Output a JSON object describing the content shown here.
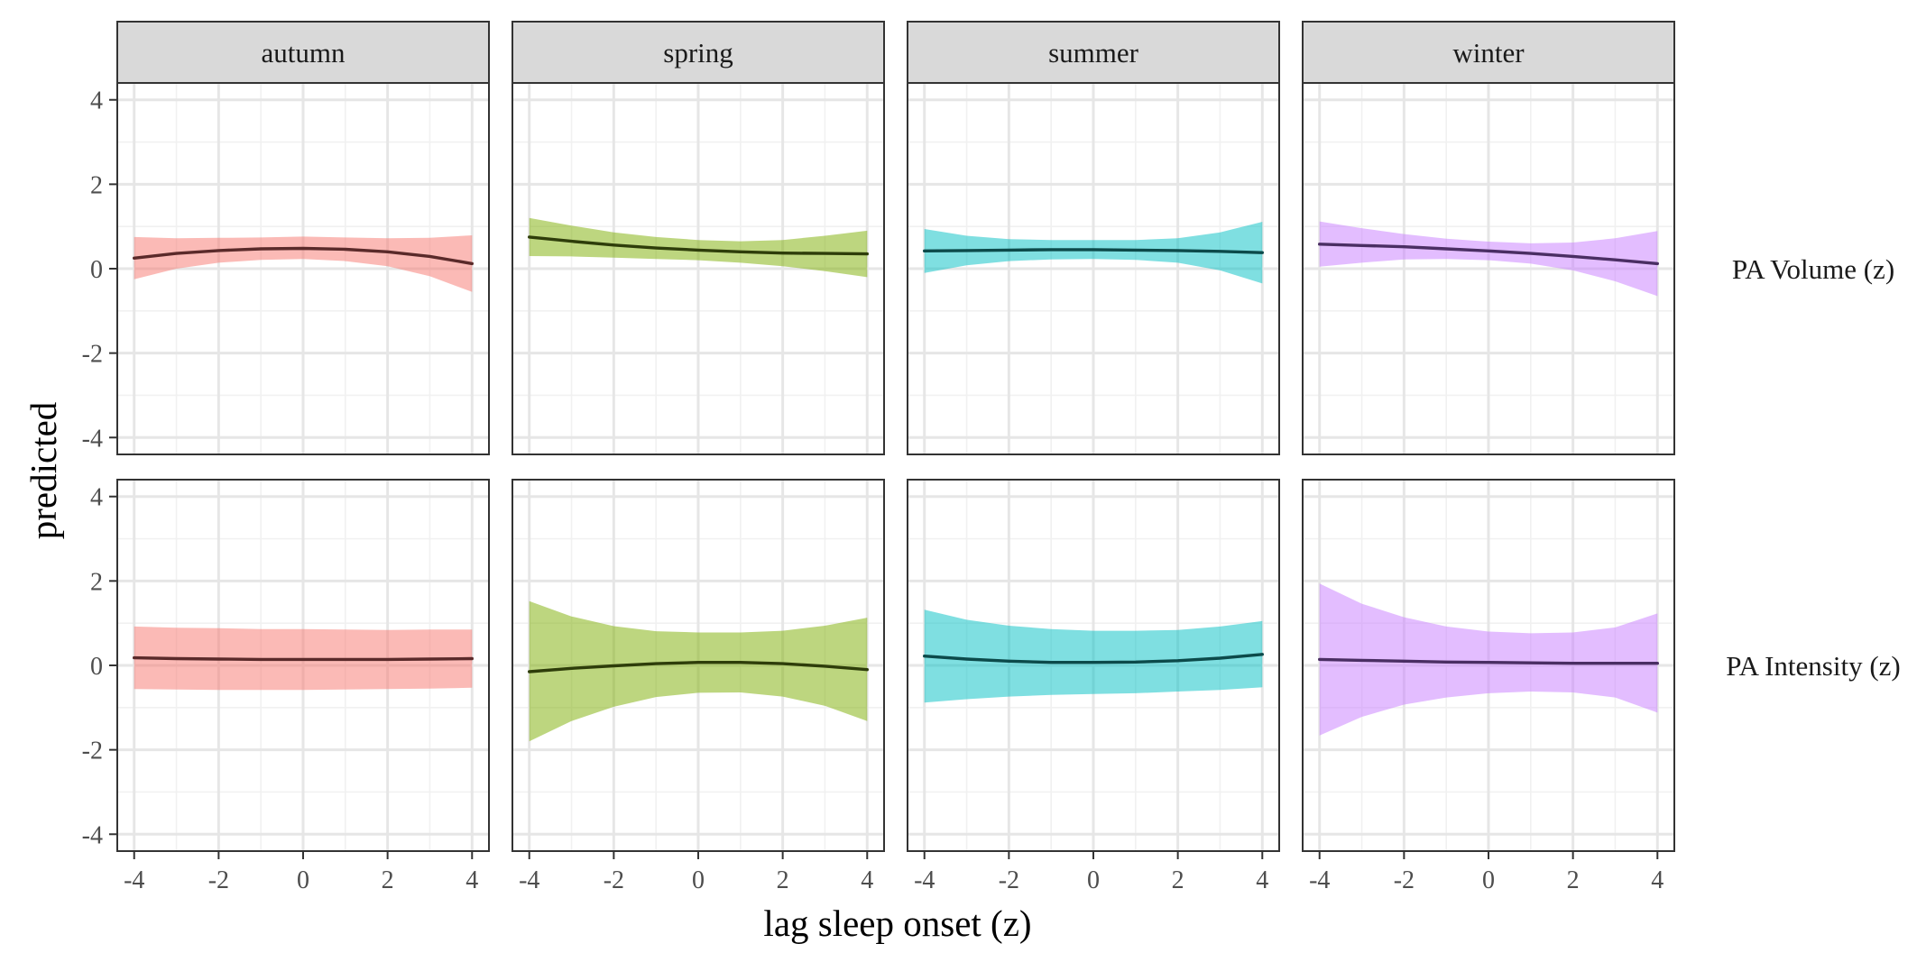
{
  "chart_data": {
    "type": "line",
    "xlabel": "lag sleep onset (z)",
    "ylabel": "predicted",
    "xlim": [
      -4,
      4
    ],
    "ylim": [
      -4,
      4
    ],
    "x_ticks": [
      -4,
      -2,
      0,
      2,
      4
    ],
    "y_ticks": [
      -4,
      -2,
      0,
      2,
      4
    ],
    "x_tick_labels": [
      "-4",
      "-2",
      "0",
      "2",
      "4"
    ],
    "y_tick_labels": [
      "-4",
      "-2",
      "0",
      "2",
      "4"
    ],
    "grid": true,
    "facet_columns": [
      "autumn",
      "spring",
      "summer",
      "winter"
    ],
    "facet_rows": [
      "PA Volume (z)",
      "PA Intensity (z)"
    ],
    "x": [
      -4,
      -3,
      -2,
      -1,
      0,
      1,
      2,
      3,
      4
    ],
    "colors": {
      "autumn": {
        "fill": "#F8766D",
        "line": "#5A2A2A"
      },
      "spring": {
        "fill": "#7CAE00",
        "line": "#2E3D0A"
      },
      "summer": {
        "fill": "#00BFC4",
        "line": "#0C4A4A"
      },
      "winter": {
        "fill": "#C77CFF",
        "line": "#4A2E63"
      }
    },
    "panels": [
      {
        "row": "PA Volume (z)",
        "col": "autumn",
        "fit": [
          0.25,
          0.36,
          0.43,
          0.47,
          0.48,
          0.46,
          0.4,
          0.29,
          0.12
        ],
        "lower": [
          -0.25,
          0.0,
          0.14,
          0.21,
          0.23,
          0.18,
          0.06,
          -0.18,
          -0.55
        ],
        "upper": [
          0.75,
          0.72,
          0.73,
          0.74,
          0.76,
          0.74,
          0.72,
          0.73,
          0.79
        ]
      },
      {
        "row": "PA Volume (z)",
        "col": "spring",
        "fit": [
          0.75,
          0.65,
          0.56,
          0.49,
          0.44,
          0.4,
          0.37,
          0.36,
          0.35
        ],
        "lower": [
          0.3,
          0.29,
          0.26,
          0.23,
          0.2,
          0.14,
          0.06,
          -0.06,
          -0.2
        ],
        "upper": [
          1.2,
          1.02,
          0.86,
          0.75,
          0.68,
          0.65,
          0.68,
          0.78,
          0.9
        ]
      },
      {
        "row": "PA Volume (z)",
        "col": "summer",
        "fit": [
          0.42,
          0.43,
          0.44,
          0.45,
          0.45,
          0.44,
          0.43,
          0.41,
          0.38
        ],
        "lower": [
          -0.1,
          0.08,
          0.18,
          0.22,
          0.23,
          0.21,
          0.14,
          -0.04,
          -0.35
        ],
        "upper": [
          0.94,
          0.78,
          0.7,
          0.68,
          0.68,
          0.68,
          0.72,
          0.86,
          1.11
        ]
      },
      {
        "row": "PA Volume (z)",
        "col": "winter",
        "fit": [
          0.58,
          0.55,
          0.52,
          0.47,
          0.42,
          0.36,
          0.29,
          0.21,
          0.12
        ],
        "lower": [
          0.05,
          0.14,
          0.22,
          0.23,
          0.2,
          0.12,
          -0.04,
          -0.3,
          -0.65
        ],
        "upper": [
          1.12,
          0.96,
          0.82,
          0.71,
          0.64,
          0.6,
          0.62,
          0.72,
          0.89
        ]
      },
      {
        "row": "PA Intensity (z)",
        "col": "autumn",
        "fit": [
          0.18,
          0.16,
          0.15,
          0.14,
          0.14,
          0.14,
          0.14,
          0.15,
          0.16
        ],
        "lower": [
          -0.56,
          -0.57,
          -0.58,
          -0.58,
          -0.58,
          -0.57,
          -0.56,
          -0.55,
          -0.53
        ],
        "upper": [
          0.92,
          0.89,
          0.88,
          0.86,
          0.86,
          0.85,
          0.84,
          0.85,
          0.85
        ]
      },
      {
        "row": "PA Intensity (z)",
        "col": "spring",
        "fit": [
          -0.15,
          -0.07,
          -0.01,
          0.04,
          0.07,
          0.07,
          0.04,
          -0.02,
          -0.1
        ],
        "lower": [
          -1.8,
          -1.32,
          -0.98,
          -0.75,
          -0.65,
          -0.64,
          -0.74,
          -0.96,
          -1.32
        ],
        "upper": [
          1.52,
          1.16,
          0.93,
          0.81,
          0.78,
          0.78,
          0.82,
          0.94,
          1.13
        ]
      },
      {
        "row": "PA Intensity (z)",
        "col": "summer",
        "fit": [
          0.22,
          0.15,
          0.1,
          0.07,
          0.07,
          0.08,
          0.11,
          0.17,
          0.26
        ],
        "lower": [
          -0.88,
          -0.8,
          -0.74,
          -0.7,
          -0.68,
          -0.66,
          -0.62,
          -0.58,
          -0.52
        ],
        "upper": [
          1.32,
          1.08,
          0.94,
          0.86,
          0.82,
          0.82,
          0.84,
          0.92,
          1.05
        ]
      },
      {
        "row": "PA Intensity (z)",
        "col": "winter",
        "fit": [
          0.14,
          0.12,
          0.1,
          0.08,
          0.07,
          0.06,
          0.05,
          0.05,
          0.05
        ],
        "lower": [
          -1.66,
          -1.22,
          -0.93,
          -0.76,
          -0.66,
          -0.62,
          -0.64,
          -0.76,
          -1.12
        ],
        "upper": [
          1.94,
          1.46,
          1.14,
          0.92,
          0.8,
          0.76,
          0.78,
          0.9,
          1.23
        ]
      }
    ]
  }
}
